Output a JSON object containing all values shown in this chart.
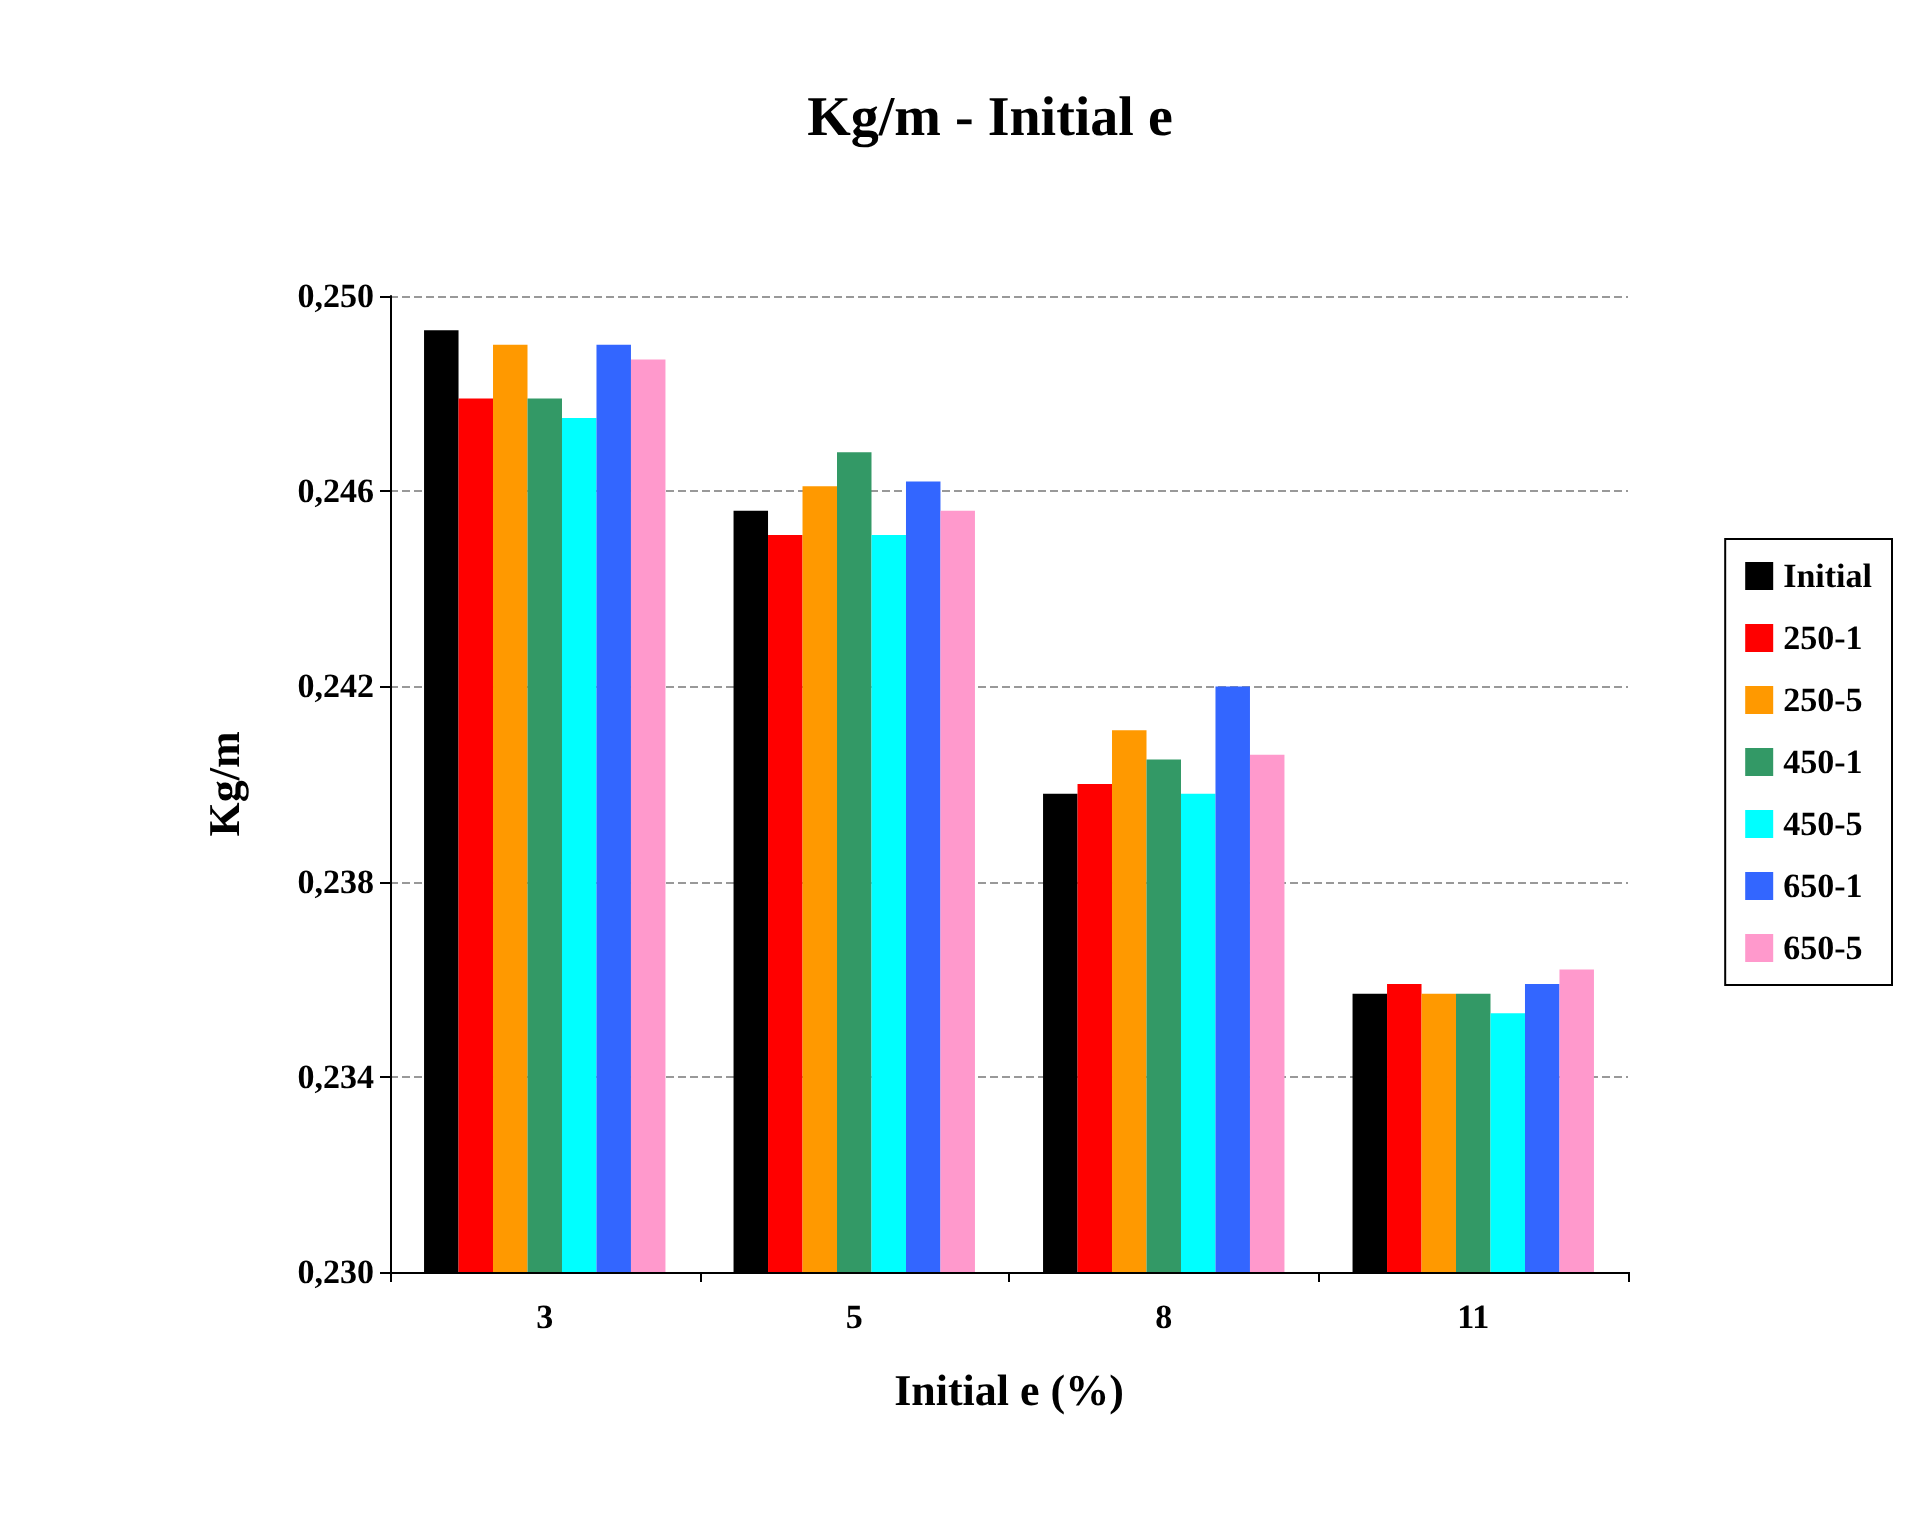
{
  "chart_data": {
    "type": "bar",
    "title": "Kg/m - Initial e",
    "xlabel": "Initial e (%)",
    "ylabel": "Kg/m",
    "categories": [
      "3",
      "5",
      "8",
      "11"
    ],
    "series": [
      {
        "name": "Initial",
        "color": "#000000",
        "values": [
          0.2493,
          0.2456,
          0.2398,
          0.2357
        ]
      },
      {
        "name": "250-1",
        "color": "#ff0000",
        "values": [
          0.2479,
          0.2451,
          0.24,
          0.2359
        ]
      },
      {
        "name": "250-5",
        "color": "#ff9900",
        "values": [
          0.249,
          0.2461,
          0.2411,
          0.2357
        ]
      },
      {
        "name": "450-1",
        "color": "#339966",
        "values": [
          0.2479,
          0.2468,
          0.2405,
          0.2357
        ]
      },
      {
        "name": "450-5",
        "color": "#00ffff",
        "values": [
          0.2475,
          0.2451,
          0.2398,
          0.2353
        ]
      },
      {
        "name": "650-1",
        "color": "#3366ff",
        "values": [
          0.249,
          0.2462,
          0.242,
          0.2359
        ]
      },
      {
        "name": "650-5",
        "color": "#ff99cc",
        "values": [
          0.2487,
          0.2456,
          0.2406,
          0.2362
        ]
      }
    ],
    "ylim": [
      0.23,
      0.25
    ],
    "yticks": [
      {
        "value": 0.23,
        "label": "0,230"
      },
      {
        "value": 0.234,
        "label": "0,234"
      },
      {
        "value": 0.238,
        "label": "0,238"
      },
      {
        "value": 0.242,
        "label": "0,242"
      },
      {
        "value": 0.246,
        "label": "0,246"
      },
      {
        "value": 0.25,
        "label": "0,250"
      }
    ],
    "grid": "y",
    "legend": "right"
  }
}
